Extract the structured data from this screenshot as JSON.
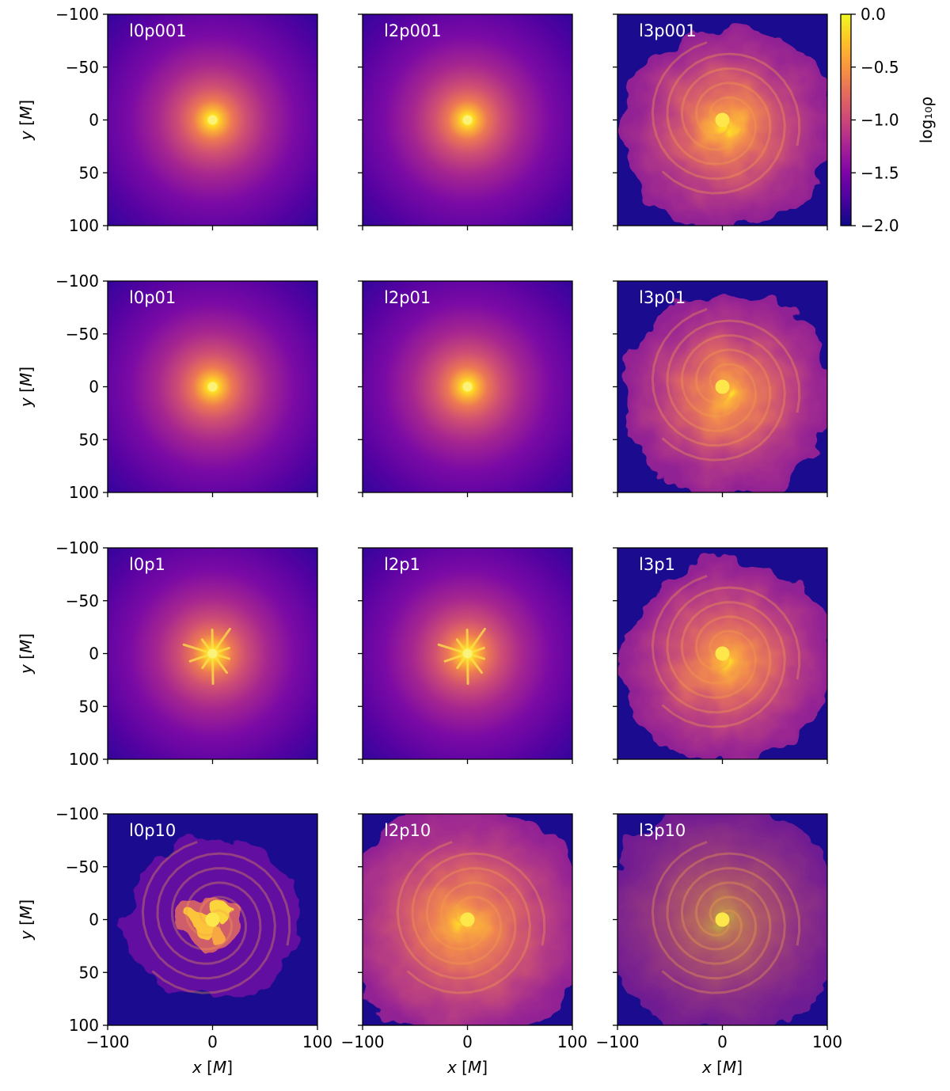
{
  "chart_data": {
    "type": "heatmap",
    "layout": {
      "rows": 4,
      "cols": 3,
      "shared_x": true,
      "shared_y": true
    },
    "x_axis": {
      "label": "x [M]",
      "lim": [
        -100,
        100
      ],
      "ticks": [
        -100,
        0,
        100
      ]
    },
    "y_axis": {
      "label": "y [M]",
      "lim": [
        -100,
        100
      ],
      "ticks": [
        -100,
        -50,
        0,
        50,
        100
      ]
    },
    "colorbar": {
      "label": "log₁₀ρ",
      "colormap": "plasma",
      "lim": [
        -2.0,
        0.0
      ],
      "ticks": [
        0.0,
        -0.5,
        -1.0,
        -1.5,
        -2.0
      ],
      "tick_labels": [
        "0.0",
        "−0.5",
        "−1.0",
        "−1.5",
        "−2.0"
      ],
      "placement": "right of top-right panel"
    },
    "tick_text": {
      "x": [
        "−100",
        "0",
        "100"
      ],
      "y": [
        "100",
        "50",
        "0",
        "−50",
        "−100"
      ]
    },
    "panels": [
      {
        "label": "l0p001",
        "row": 0,
        "col": 0,
        "morphology": "smooth"
      },
      {
        "label": "l2p001",
        "row": 0,
        "col": 1,
        "morphology": "smooth"
      },
      {
        "label": "l3p001",
        "row": 0,
        "col": 2,
        "morphology": "spiral"
      },
      {
        "label": "l0p01",
        "row": 1,
        "col": 0,
        "morphology": "smooth"
      },
      {
        "label": "l2p01",
        "row": 1,
        "col": 1,
        "morphology": "smooth"
      },
      {
        "label": "l3p01",
        "row": 1,
        "col": 2,
        "morphology": "spiral"
      },
      {
        "label": "l0p1",
        "row": 2,
        "col": 0,
        "morphology": "smooth-jets"
      },
      {
        "label": "l2p1",
        "row": 2,
        "col": 1,
        "morphology": "smooth-jets"
      },
      {
        "label": "l3p1",
        "row": 2,
        "col": 2,
        "morphology": "spiral"
      },
      {
        "label": "l0p10",
        "row": 3,
        "col": 0,
        "morphology": "lobes"
      },
      {
        "label": "l2p10",
        "row": 3,
        "col": 1,
        "morphology": "turbulent"
      },
      {
        "label": "l3p10",
        "row": 3,
        "col": 2,
        "morphology": "turbulent"
      }
    ]
  }
}
